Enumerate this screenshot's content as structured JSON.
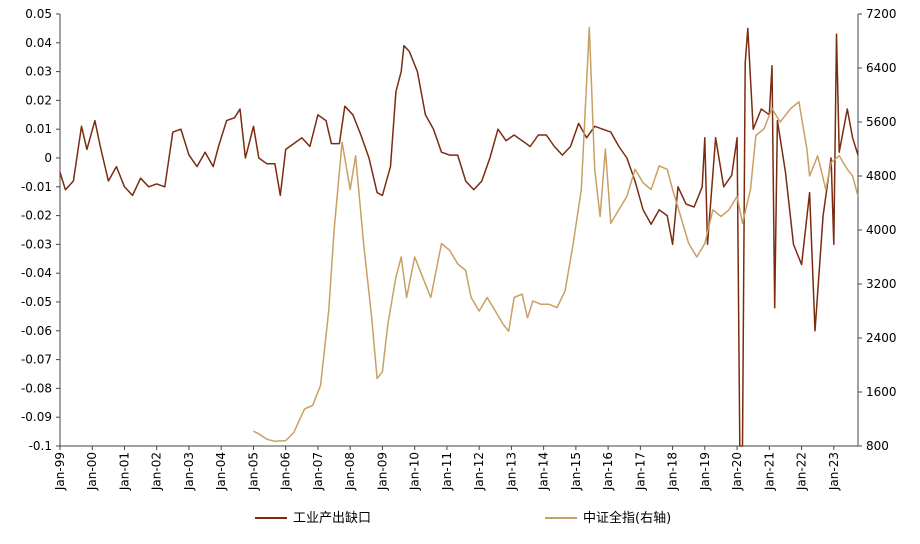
{
  "chart_data": {
    "type": "line",
    "x": [
      "Jan-99",
      "Jan-00",
      "Jan-01",
      "Jan-02",
      "Jan-03",
      "Jan-04",
      "Jan-05",
      "Jan-06",
      "Jan-07",
      "Jan-08",
      "Jan-09",
      "Jan-10",
      "Jan-11",
      "Jan-12",
      "Jan-13",
      "Jan-14",
      "Jan-15",
      "Jan-16",
      "Jan-17",
      "Jan-18",
      "Jan-19",
      "Jan-20",
      "Jan-21",
      "Jan-22",
      "Jan-23"
    ],
    "x_range": [
      "Jan-99",
      "Oct-23"
    ],
    "y_left": {
      "ylim": [
        -0.1,
        0.05
      ],
      "ticks": [
        "0.05",
        "0.04",
        "0.03",
        "0.02",
        "0.01",
        "0",
        "-0.01",
        "-0.02",
        "-0.03",
        "-0.04",
        "-0.05",
        "-0.06",
        "-0.07",
        "-0.08",
        "-0.09",
        "-0.1"
      ]
    },
    "y_right": {
      "ylim": [
        800,
        7200
      ],
      "ticks": [
        "7200",
        "6400",
        "5600",
        "4800",
        "4000",
        "3200",
        "2400",
        "1600",
        "800"
      ]
    },
    "series": [
      {
        "name": "工业产出缺口",
        "axis": "left",
        "color": "#7B2C10",
        "points": [
          [
            "1999-01",
            -0.005
          ],
          [
            "1999-03",
            -0.011
          ],
          [
            "1999-06",
            -0.008
          ],
          [
            "1999-09",
            0.011
          ],
          [
            "1999-11",
            0.003
          ],
          [
            "2000-02",
            0.013
          ],
          [
            "2000-04",
            0.004
          ],
          [
            "2000-07",
            -0.008
          ],
          [
            "2000-10",
            -0.003
          ],
          [
            "2001-01",
            -0.01
          ],
          [
            "2001-04",
            -0.013
          ],
          [
            "2001-07",
            -0.007
          ],
          [
            "2001-10",
            -0.01
          ],
          [
            "2002-01",
            -0.009
          ],
          [
            "2002-04",
            -0.01
          ],
          [
            "2002-07",
            0.009
          ],
          [
            "2002-10",
            0.01
          ],
          [
            "2003-01",
            0.001
          ],
          [
            "2003-04",
            -0.003
          ],
          [
            "2003-07",
            0.002
          ],
          [
            "2003-10",
            -0.003
          ],
          [
            "2003-12",
            0.004
          ],
          [
            "2004-03",
            0.013
          ],
          [
            "2004-06",
            0.014
          ],
          [
            "2004-08",
            0.017
          ],
          [
            "2004-10",
            0.0
          ],
          [
            "2005-01",
            0.011
          ],
          [
            "2005-03",
            0.0
          ],
          [
            "2005-06",
            -0.002
          ],
          [
            "2005-09",
            -0.002
          ],
          [
            "2005-11",
            -0.013
          ],
          [
            "2006-01",
            0.003
          ],
          [
            "2006-04",
            0.005
          ],
          [
            "2006-07",
            0.007
          ],
          [
            "2006-10",
            0.004
          ],
          [
            "2007-01",
            0.015
          ],
          [
            "2007-04",
            0.013
          ],
          [
            "2007-06",
            0.005
          ],
          [
            "2007-09",
            0.005
          ],
          [
            "2007-11",
            0.018
          ],
          [
            "2008-02",
            0.015
          ],
          [
            "2008-05",
            0.008
          ],
          [
            "2008-08",
            0.0
          ],
          [
            "2008-11",
            -0.012
          ],
          [
            "2009-01",
            -0.013
          ],
          [
            "2009-04",
            -0.003
          ],
          [
            "2009-06",
            0.023
          ],
          [
            "2009-08",
            0.03
          ],
          [
            "2009-09",
            0.039
          ],
          [
            "2009-11",
            0.037
          ],
          [
            "2010-02",
            0.03
          ],
          [
            "2010-05",
            0.015
          ],
          [
            "2010-08",
            0.01
          ],
          [
            "2010-11",
            0.002
          ],
          [
            "2011-02",
            0.001
          ],
          [
            "2011-05",
            0.001
          ],
          [
            "2011-08",
            -0.008
          ],
          [
            "2011-11",
            -0.011
          ],
          [
            "2012-02",
            -0.008
          ],
          [
            "2012-05",
            0.0
          ],
          [
            "2012-08",
            0.01
          ],
          [
            "2012-11",
            0.006
          ],
          [
            "2013-02",
            0.008
          ],
          [
            "2013-05",
            0.006
          ],
          [
            "2013-08",
            0.004
          ],
          [
            "2013-11",
            0.008
          ],
          [
            "2014-02",
            0.008
          ],
          [
            "2014-05",
            0.004
          ],
          [
            "2014-08",
            0.001
          ],
          [
            "2014-11",
            0.004
          ],
          [
            "2015-02",
            0.012
          ],
          [
            "2015-05",
            0.007
          ],
          [
            "2015-08",
            0.011
          ],
          [
            "2015-11",
            0.01
          ],
          [
            "2016-02",
            0.009
          ],
          [
            "2016-05",
            0.004
          ],
          [
            "2016-08",
            0.0
          ],
          [
            "2016-11",
            -0.008
          ],
          [
            "2017-02",
            -0.018
          ],
          [
            "2017-05",
            -0.023
          ],
          [
            "2017-08",
            -0.018
          ],
          [
            "2017-11",
            -0.02
          ],
          [
            "2018-01",
            -0.03
          ],
          [
            "2018-03",
            -0.01
          ],
          [
            "2018-06",
            -0.016
          ],
          [
            "2018-09",
            -0.017
          ],
          [
            "2018-12",
            -0.01
          ],
          [
            "2019-01",
            0.007
          ],
          [
            "2019-02",
            -0.03
          ],
          [
            "2019-05",
            0.007
          ],
          [
            "2019-08",
            -0.01
          ],
          [
            "2019-11",
            -0.006
          ],
          [
            "2020-01",
            0.007
          ],
          [
            "2020-02",
            -0.1
          ],
          [
            "2020-03",
            -0.1
          ],
          [
            "2020-04",
            0.033
          ],
          [
            "2020-05",
            0.045
          ],
          [
            "2020-07",
            0.01
          ],
          [
            "2020-10",
            0.017
          ],
          [
            "2021-01",
            0.015
          ],
          [
            "2021-02",
            0.032
          ],
          [
            "2021-03",
            -0.052
          ],
          [
            "2021-04",
            0.013
          ],
          [
            "2021-07",
            -0.005
          ],
          [
            "2021-10",
            -0.03
          ],
          [
            "2022-01",
            -0.037
          ],
          [
            "2022-04",
            -0.012
          ],
          [
            "2022-06",
            -0.06
          ],
          [
            "2022-09",
            -0.02
          ],
          [
            "2022-12",
            0.0
          ],
          [
            "2023-01",
            -0.03
          ],
          [
            "2023-02",
            0.043
          ],
          [
            "2023-03",
            0.002
          ],
          [
            "2023-06",
            0.017
          ],
          [
            "2023-08",
            0.007
          ],
          [
            "2023-10",
            0.001
          ]
        ]
      },
      {
        "name": "中证全指(右轴)",
        "axis": "right",
        "color": "#C9A063",
        "points": [
          [
            "2005-01",
            1020
          ],
          [
            "2005-03",
            980
          ],
          [
            "2005-06",
            900
          ],
          [
            "2005-09",
            870
          ],
          [
            "2006-01",
            880
          ],
          [
            "2006-04",
            1000
          ],
          [
            "2006-08",
            1350
          ],
          [
            "2006-11",
            1400
          ],
          [
            "2007-02",
            1700
          ],
          [
            "2007-05",
            2800
          ],
          [
            "2007-07",
            4000
          ],
          [
            "2007-10",
            5300
          ],
          [
            "2008-01",
            4600
          ],
          [
            "2008-03",
            5100
          ],
          [
            "2008-06",
            3800
          ],
          [
            "2008-09",
            2700
          ],
          [
            "2008-11",
            1800
          ],
          [
            "2009-01",
            1900
          ],
          [
            "2009-03",
            2600
          ],
          [
            "2009-06",
            3300
          ],
          [
            "2009-08",
            3600
          ],
          [
            "2009-10",
            3000
          ],
          [
            "2010-01",
            3600
          ],
          [
            "2010-04",
            3300
          ],
          [
            "2010-07",
            3000
          ],
          [
            "2010-11",
            3800
          ],
          [
            "2011-02",
            3700
          ],
          [
            "2011-05",
            3500
          ],
          [
            "2011-08",
            3400
          ],
          [
            "2011-10",
            3000
          ],
          [
            "2012-01",
            2800
          ],
          [
            "2012-04",
            3000
          ],
          [
            "2012-07",
            2800
          ],
          [
            "2012-10",
            2600
          ],
          [
            "2012-12",
            2500
          ],
          [
            "2013-02",
            3000
          ],
          [
            "2013-05",
            3050
          ],
          [
            "2013-07",
            2700
          ],
          [
            "2013-09",
            2950
          ],
          [
            "2013-12",
            2900
          ],
          [
            "2014-03",
            2900
          ],
          [
            "2014-06",
            2850
          ],
          [
            "2014-09",
            3100
          ],
          [
            "2014-12",
            3800
          ],
          [
            "2015-03",
            4600
          ],
          [
            "2015-06",
            7000
          ],
          [
            "2015-08",
            4900
          ],
          [
            "2015-10",
            4200
          ],
          [
            "2015-12",
            5200
          ],
          [
            "2016-02",
            4100
          ],
          [
            "2016-05",
            4300
          ],
          [
            "2016-08",
            4500
          ],
          [
            "2016-11",
            4900
          ],
          [
            "2017-02",
            4700
          ],
          [
            "2017-05",
            4600
          ],
          [
            "2017-08",
            4950
          ],
          [
            "2017-11",
            4900
          ],
          [
            "2018-01",
            4600
          ],
          [
            "2018-04",
            4200
          ],
          [
            "2018-07",
            3800
          ],
          [
            "2018-10",
            3600
          ],
          [
            "2019-01",
            3800
          ],
          [
            "2019-04",
            4300
          ],
          [
            "2019-07",
            4200
          ],
          [
            "2019-10",
            4300
          ],
          [
            "2020-01",
            4500
          ],
          [
            "2020-03",
            4100
          ],
          [
            "2020-06",
            4600
          ],
          [
            "2020-08",
            5400
          ],
          [
            "2020-11",
            5500
          ],
          [
            "2021-02",
            5800
          ],
          [
            "2021-05",
            5600
          ],
          [
            "2021-09",
            5800
          ],
          [
            "2021-12",
            5900
          ],
          [
            "2022-03",
            5200
          ],
          [
            "2022-04",
            4800
          ],
          [
            "2022-07",
            5100
          ],
          [
            "2022-10",
            4600
          ],
          [
            "2022-12",
            5000
          ],
          [
            "2023-03",
            5100
          ],
          [
            "2023-06",
            4900
          ],
          [
            "2023-08",
            4800
          ],
          [
            "2023-10",
            4500
          ]
        ]
      }
    ],
    "legend_position": "bottom",
    "grid": false
  }
}
